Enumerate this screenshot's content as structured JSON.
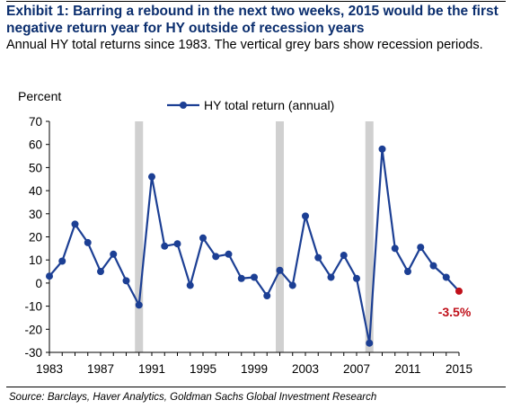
{
  "title": "Exhibit 1: Barring a rebound in the next two weeks, 2015 would be the first negative return year for HY outside of recession years",
  "subtitle": "Annual HY total returns since 1983. The vertical grey bars show recession periods.",
  "source": "Source: Barclays, Haver Analytics, Goldman Sachs Global Investment Research",
  "colors": {
    "title": "#0b2e6e",
    "series": "#1c3f94",
    "highlight": "#c0101a",
    "recession": "#d0d0d0"
  },
  "chart_data": {
    "type": "line",
    "ylabel": "Percent",
    "ylim": [
      -30,
      70
    ],
    "yticks": [
      -30,
      -20,
      -10,
      0,
      10,
      20,
      30,
      40,
      50,
      60,
      70
    ],
    "xlim": [
      1983,
      2015
    ],
    "xticks": [
      1983,
      1987,
      1991,
      1995,
      1999,
      2003,
      2007,
      2011,
      2015
    ],
    "legend": "top-center",
    "grid": false,
    "recession_years": [
      1990,
      2001,
      2008
    ],
    "series": [
      {
        "name": "HY total return (annual)",
        "x": [
          1983,
          1984,
          1985,
          1986,
          1987,
          1988,
          1989,
          1990,
          1991,
          1992,
          1993,
          1994,
          1995,
          1996,
          1997,
          1998,
          1999,
          2000,
          2001,
          2002,
          2003,
          2004,
          2005,
          2006,
          2007,
          2008,
          2009,
          2010,
          2011,
          2012,
          2013,
          2014,
          2015
        ],
        "y": [
          3,
          9.5,
          25.5,
          17.5,
          5,
          12.5,
          1,
          -9.5,
          46,
          16,
          17,
          -1,
          19.5,
          11.5,
          12.5,
          2,
          2.5,
          -5.5,
          5.5,
          -1,
          29,
          11,
          2.5,
          12,
          2,
          -26,
          58,
          15,
          5,
          15.5,
          7.5,
          2.5,
          -3.5
        ]
      }
    ],
    "annotations": [
      {
        "x": 2015,
        "y": -3.5,
        "text": "-3.5%"
      }
    ]
  }
}
